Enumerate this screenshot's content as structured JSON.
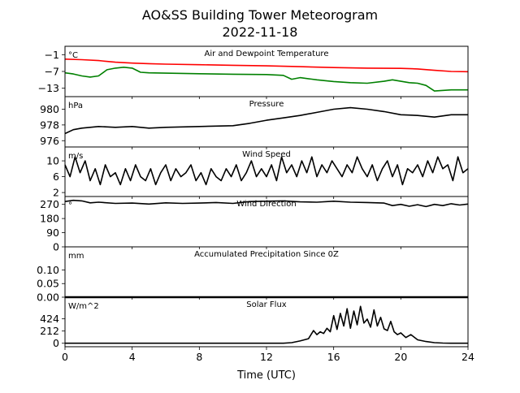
{
  "figure": {
    "title": "AO&SS Building Tower Meteorogram",
    "subtitle": "2022-11-18",
    "xlabel": "Time (UTC)"
  },
  "chart_data": [
    {
      "type": "line",
      "title": "Air and Dewpoint Temperature",
      "unit": "°C",
      "ylim": [
        -16,
        2
      ],
      "yticks": [
        -1,
        -7,
        -13
      ],
      "ytick_labels": [
        "−1",
        "−7",
        "−13"
      ],
      "series": [
        {
          "color": "#ff0000",
          "x": [
            0,
            1,
            2,
            3,
            4,
            5,
            6,
            8,
            10,
            12,
            14,
            16,
            18,
            20,
            21,
            22,
            23,
            24
          ],
          "y": [
            -2.6,
            -2.8,
            -3.1,
            -3.7,
            -4.0,
            -4.2,
            -4.4,
            -4.6,
            -4.8,
            -5.0,
            -5.3,
            -5.6,
            -5.8,
            -5.9,
            -6.1,
            -6.6,
            -7.0,
            -7.1
          ]
        },
        {
          "color": "#008000",
          "x": [
            0,
            0.5,
            1,
            1.5,
            2,
            2.5,
            3,
            3.5,
            4,
            4.5,
            5,
            6,
            8,
            10,
            12,
            13,
            13.5,
            14,
            15,
            16,
            17,
            18,
            19,
            19.5,
            20,
            20.5,
            21,
            21.5,
            22,
            23,
            24
          ],
          "y": [
            -7.5,
            -7.9,
            -8.6,
            -9.0,
            -8.6,
            -6.4,
            -5.8,
            -5.5,
            -5.8,
            -7.3,
            -7.5,
            -7.6,
            -7.8,
            -8.0,
            -8.1,
            -8.4,
            -9.8,
            -9.2,
            -10.0,
            -10.6,
            -11.0,
            -11.2,
            -10.5,
            -10.0,
            -10.5,
            -11.0,
            -11.2,
            -12.0,
            -14.0,
            -13.6,
            -13.6
          ]
        }
      ]
    },
    {
      "type": "line",
      "title": "Pressure",
      "unit": "hPa",
      "ylim": [
        975.2,
        981.6
      ],
      "yticks": [
        980,
        978,
        976
      ],
      "ytick_labels": [
        "980",
        "978",
        "976"
      ],
      "series": [
        {
          "color": "#000000",
          "x": [
            0,
            0.5,
            1,
            2,
            3,
            4,
            5,
            6,
            8,
            10,
            11,
            12,
            13,
            14,
            15,
            16,
            17,
            18,
            19,
            20,
            21,
            22,
            23,
            24
          ],
          "y": [
            976.9,
            977.4,
            977.6,
            977.8,
            977.7,
            977.8,
            977.6,
            977.7,
            977.8,
            977.9,
            978.2,
            978.6,
            978.9,
            979.2,
            979.6,
            980.0,
            980.2,
            980.0,
            979.7,
            979.3,
            979.2,
            979.0,
            979.3,
            979.3
          ]
        }
      ]
    },
    {
      "type": "line",
      "title": "Wind Speed",
      "unit": "m/s",
      "ylim": [
        1,
        13.5
      ],
      "yticks": [
        10,
        6,
        2
      ],
      "ytick_labels": [
        "10",
        "6",
        "2"
      ],
      "series": [
        {
          "color": "#000000",
          "x": [
            0,
            0.3,
            0.6,
            0.9,
            1.2,
            1.5,
            1.8,
            2.1,
            2.4,
            2.7,
            3.0,
            3.3,
            3.6,
            3.9,
            4.2,
            4.5,
            4.8,
            5.1,
            5.4,
            5.7,
            6.0,
            6.3,
            6.6,
            6.9,
            7.2,
            7.5,
            7.8,
            8.1,
            8.4,
            8.7,
            9.0,
            9.3,
            9.6,
            9.9,
            10.2,
            10.5,
            10.8,
            11.1,
            11.4,
            11.7,
            12.0,
            12.3,
            12.6,
            12.9,
            13.2,
            13.5,
            13.8,
            14.1,
            14.4,
            14.7,
            15.0,
            15.3,
            15.6,
            15.9,
            16.2,
            16.5,
            16.8,
            17.1,
            17.4,
            17.7,
            18.0,
            18.3,
            18.6,
            18.9,
            19.2,
            19.5,
            19.8,
            20.1,
            20.4,
            20.7,
            21.0,
            21.3,
            21.6,
            21.9,
            22.2,
            22.5,
            22.8,
            23.1,
            23.4,
            23.7,
            24.0
          ],
          "y": [
            9,
            6,
            11,
            7,
            10,
            5,
            8,
            4,
            9,
            6,
            7,
            4,
            8,
            5,
            9,
            6,
            5,
            8,
            4,
            7,
            9,
            5,
            8,
            6,
            7,
            9,
            5,
            7,
            4,
            8,
            6,
            5,
            8,
            6,
            9,
            5,
            7,
            10,
            6,
            8,
            6,
            9,
            5,
            11,
            7,
            9,
            6,
            10,
            7,
            11,
            6,
            9,
            7,
            10,
            8,
            6,
            9,
            7,
            11,
            8,
            6,
            9,
            5,
            8,
            10,
            6,
            9,
            4,
            8,
            7,
            9,
            6,
            10,
            7,
            11,
            8,
            9,
            5,
            11,
            7,
            8
          ]
        }
      ]
    },
    {
      "type": "line",
      "title": "Wind Direction",
      "unit": "°",
      "ylim": [
        0,
        320
      ],
      "yticks": [
        270,
        180,
        90,
        0
      ],
      "ytick_labels": [
        "270",
        "180",
        "90",
        "0"
      ],
      "series": [
        {
          "color": "#000000",
          "x": [
            0,
            0.5,
            1,
            1.5,
            2,
            3,
            4,
            5,
            6,
            7,
            8,
            9,
            10,
            11,
            12,
            13,
            14,
            15,
            16,
            17,
            18,
            19,
            19.5,
            20,
            20.5,
            21,
            21.5,
            22,
            22.5,
            23,
            23.5,
            24
          ],
          "y": [
            288,
            296,
            292,
            280,
            284,
            276,
            278,
            272,
            280,
            276,
            278,
            282,
            276,
            288,
            290,
            292,
            286,
            284,
            290,
            284,
            282,
            278,
            262,
            270,
            258,
            268,
            256,
            270,
            262,
            274,
            266,
            272
          ]
        }
      ]
    },
    {
      "type": "line",
      "title": "Accumulated Precipitation Since 0Z",
      "unit": "mm",
      "ylim": [
        0,
        0.185
      ],
      "yticks": [
        0.1,
        0.05,
        0.0
      ],
      "ytick_labels": [
        "0.10",
        "0.05",
        "0.00"
      ],
      "series": [
        {
          "color": "#000000",
          "x": [
            0,
            24
          ],
          "y": [
            0,
            0
          ]
        }
      ]
    },
    {
      "type": "line",
      "title": "Solar Flux",
      "unit": "W/m^2",
      "ylim": [
        -60,
        800
      ],
      "yticks": [
        424,
        212,
        0
      ],
      "ytick_labels": [
        "424",
        "212",
        "0"
      ],
      "series": [
        {
          "color": "#000000",
          "x": [
            0,
            13,
            13.5,
            14,
            14.5,
            14.8,
            15.0,
            15.2,
            15.4,
            15.6,
            15.8,
            16.0,
            16.2,
            16.4,
            16.6,
            16.8,
            17.0,
            17.2,
            17.4,
            17.6,
            17.8,
            18.0,
            18.2,
            18.4,
            18.6,
            18.8,
            19.0,
            19.2,
            19.4,
            19.6,
            19.8,
            20.0,
            20.3,
            20.6,
            21.0,
            21.5,
            22.0,
            22.5,
            23.0,
            24.0
          ],
          "y": [
            0,
            0,
            10,
            40,
            80,
            220,
            150,
            200,
            170,
            260,
            200,
            480,
            240,
            520,
            300,
            600,
            260,
            560,
            320,
            640,
            350,
            420,
            280,
            580,
            300,
            450,
            250,
            220,
            380,
            200,
            150,
            180,
            100,
            150,
            60,
            30,
            10,
            3,
            0,
            0
          ]
        }
      ]
    }
  ],
  "xaxis": {
    "range": [
      0,
      24
    ],
    "ticks": [
      0,
      4,
      8,
      12,
      16,
      20,
      24
    ],
    "tick_labels": [
      "0",
      "4",
      "8",
      "12",
      "16",
      "20",
      "24"
    ]
  }
}
